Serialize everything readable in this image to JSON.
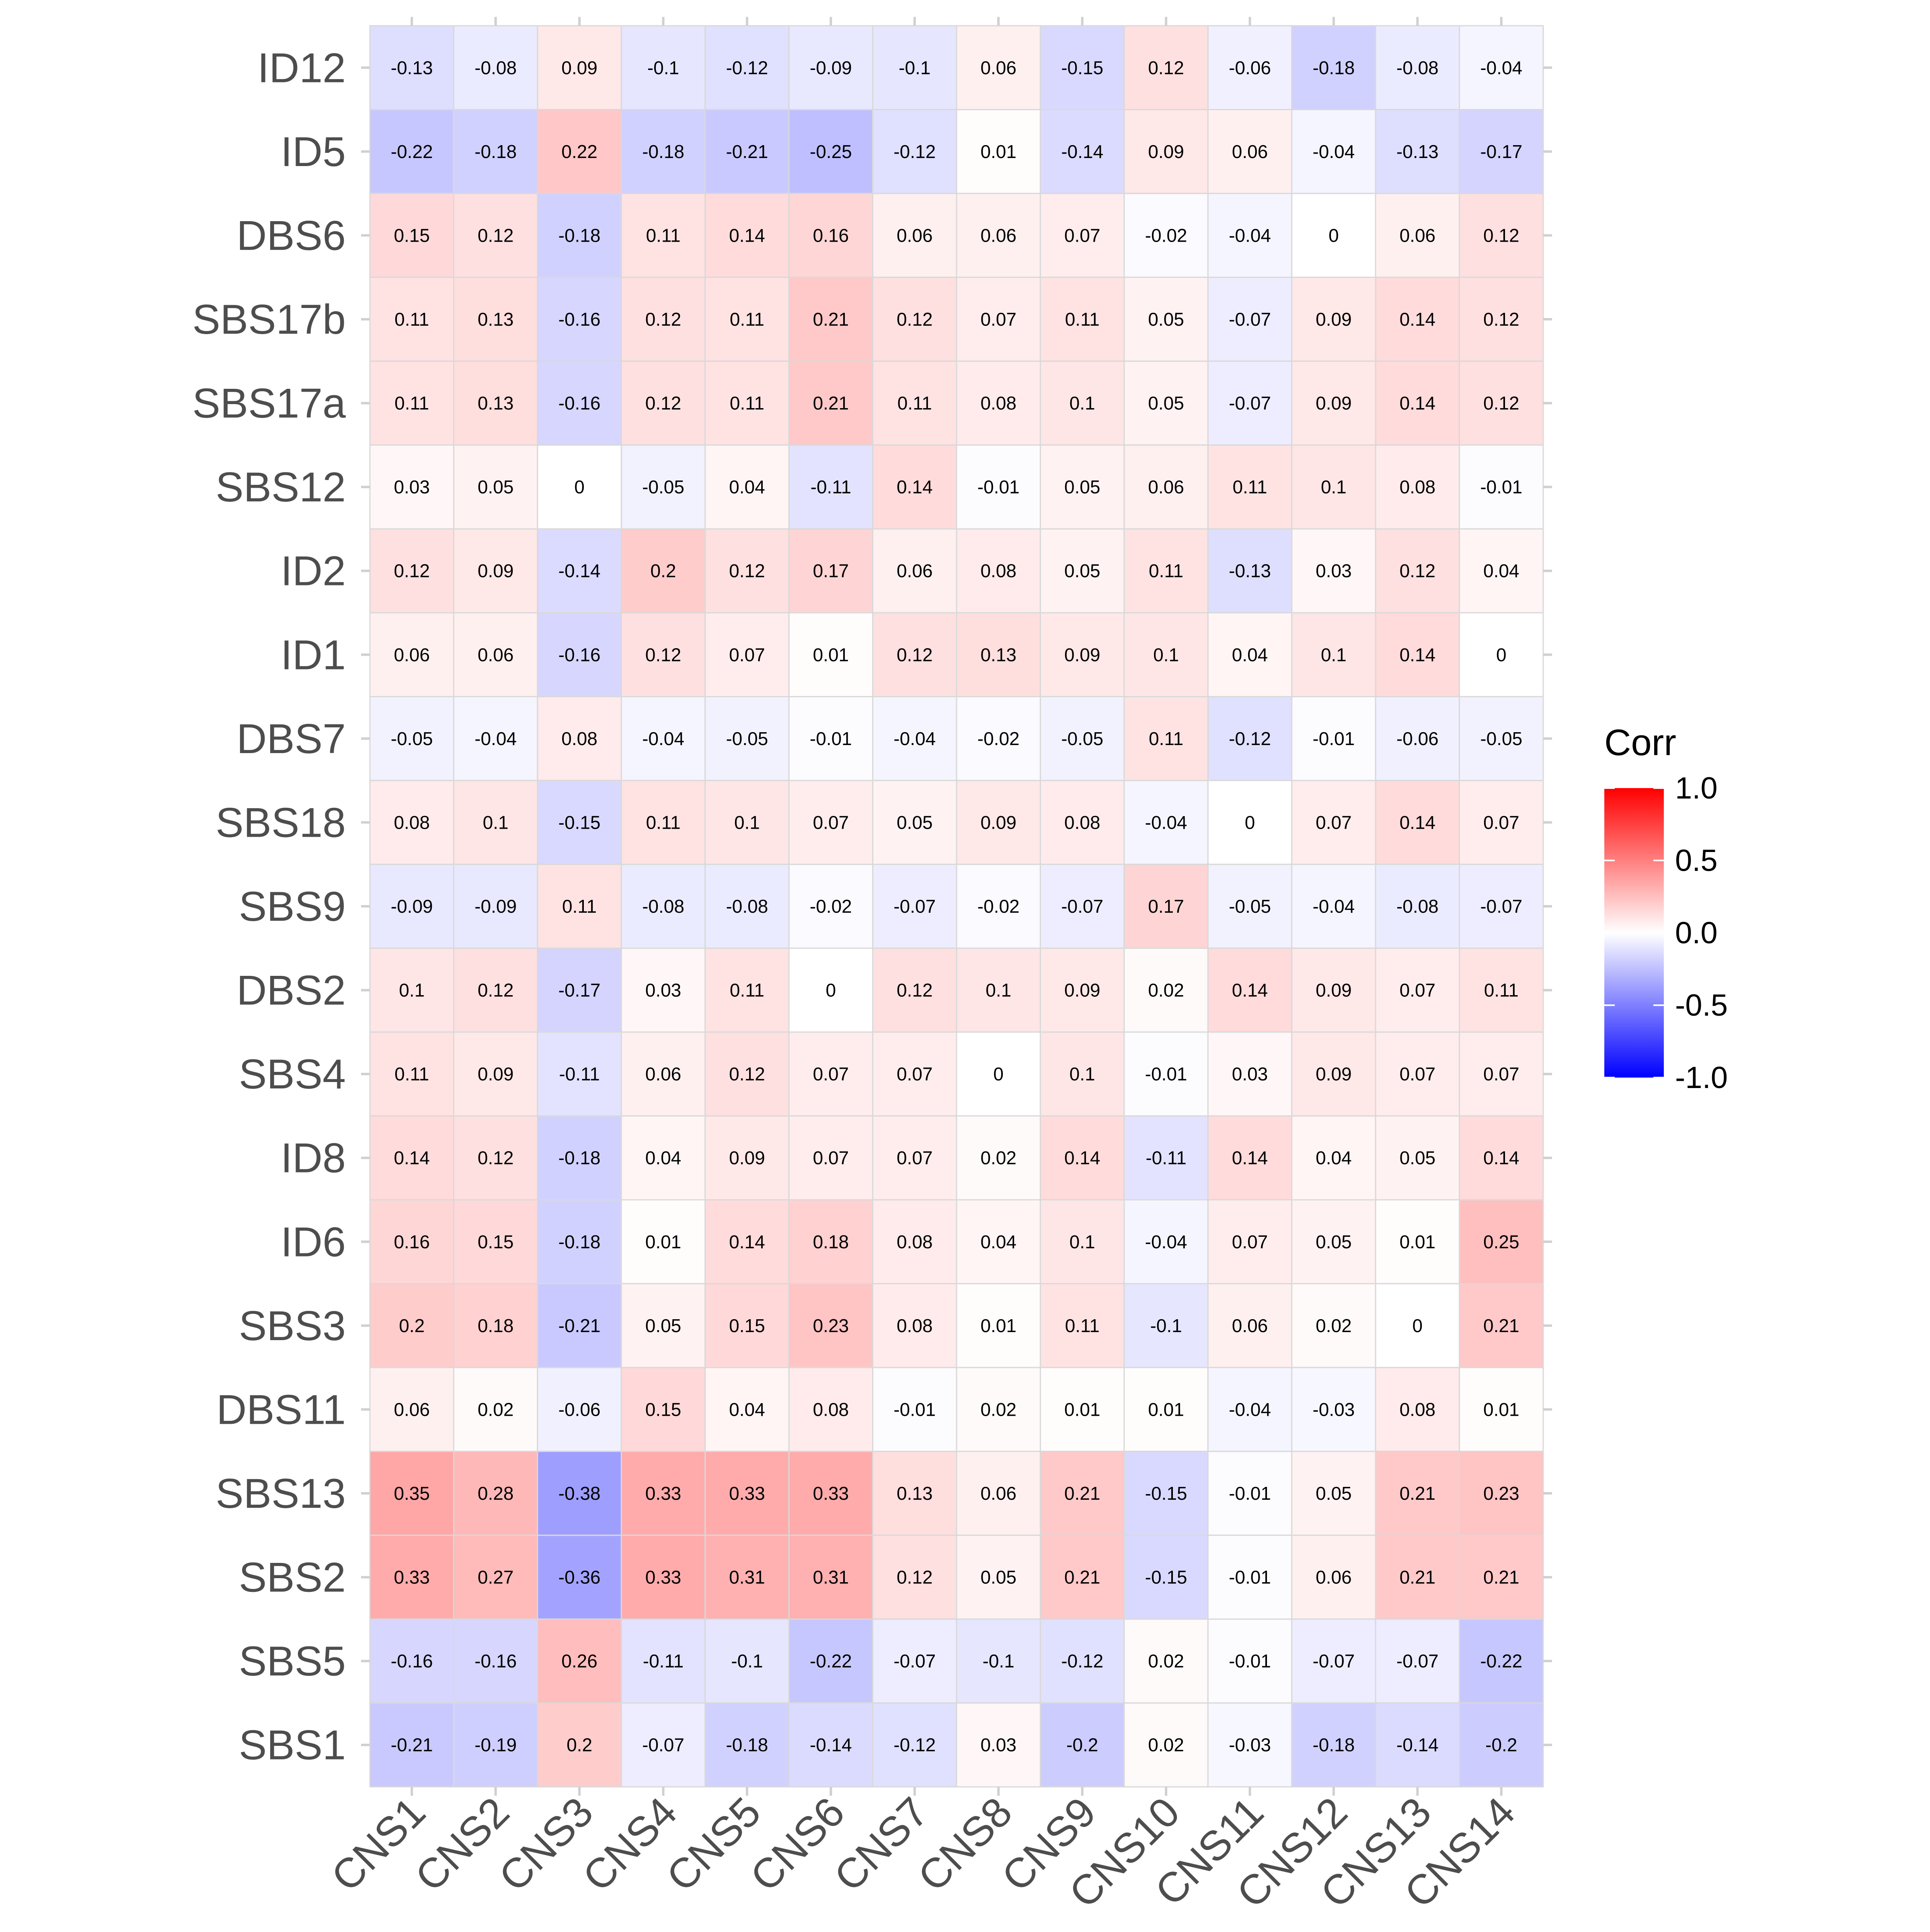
{
  "chart_data": {
    "type": "heatmap",
    "title": "",
    "xlabel": "",
    "ylabel": "",
    "x": [
      "CNS1",
      "CNS2",
      "CNS3",
      "CNS4",
      "CNS5",
      "CNS6",
      "CNS7",
      "CNS8",
      "CNS9",
      "CNS10",
      "CNS11",
      "CNS12",
      "CNS13",
      "CNS14"
    ],
    "y": [
      "ID12",
      "ID5",
      "DBS6",
      "SBS17b",
      "SBS17a",
      "SBS12",
      "ID2",
      "ID1",
      "DBS7",
      "SBS18",
      "SBS9",
      "DBS2",
      "SBS4",
      "ID8",
      "ID6",
      "SBS3",
      "DBS11",
      "SBS13",
      "SBS2",
      "SBS5",
      "SBS1"
    ],
    "values": [
      [
        -0.13,
        -0.08,
        0.09,
        -0.1,
        -0.12,
        -0.09,
        -0.1,
        0.06,
        -0.15,
        0.12,
        -0.06,
        -0.18,
        -0.08,
        -0.04
      ],
      [
        -0.22,
        -0.18,
        0.22,
        -0.18,
        -0.21,
        -0.25,
        -0.12,
        0.01,
        -0.14,
        0.09,
        0.06,
        -0.04,
        -0.13,
        -0.17
      ],
      [
        0.15,
        0.12,
        -0.18,
        0.11,
        0.14,
        0.16,
        0.06,
        0.06,
        0.07,
        -0.02,
        -0.04,
        0,
        0.06,
        0.12
      ],
      [
        0.11,
        0.13,
        -0.16,
        0.12,
        0.11,
        0.21,
        0.12,
        0.07,
        0.11,
        0.05,
        -0.07,
        0.09,
        0.14,
        0.12
      ],
      [
        0.11,
        0.13,
        -0.16,
        0.12,
        0.11,
        0.21,
        0.11,
        0.08,
        0.1,
        0.05,
        -0.07,
        0.09,
        0.14,
        0.12
      ],
      [
        0.03,
        0.05,
        0,
        -0.05,
        0.04,
        -0.11,
        0.14,
        -0.01,
        0.05,
        0.06,
        0.11,
        0.1,
        0.08,
        -0.01
      ],
      [
        0.12,
        0.09,
        -0.14,
        0.2,
        0.12,
        0.17,
        0.06,
        0.08,
        0.05,
        0.11,
        -0.13,
        0.03,
        0.12,
        0.04
      ],
      [
        0.06,
        0.06,
        -0.16,
        0.12,
        0.07,
        0.01,
        0.12,
        0.13,
        0.09,
        0.1,
        0.04,
        0.1,
        0.14,
        0
      ],
      [
        -0.05,
        -0.04,
        0.08,
        -0.04,
        -0.05,
        -0.01,
        -0.04,
        -0.02,
        -0.05,
        0.11,
        -0.12,
        -0.01,
        -0.06,
        -0.05
      ],
      [
        0.08,
        0.1,
        -0.15,
        0.11,
        0.1,
        0.07,
        0.05,
        0.09,
        0.08,
        -0.04,
        0,
        0.07,
        0.14,
        0.07
      ],
      [
        -0.09,
        -0.09,
        0.11,
        -0.08,
        -0.08,
        -0.02,
        -0.07,
        -0.02,
        -0.07,
        0.17,
        -0.05,
        -0.04,
        -0.08,
        -0.07
      ],
      [
        0.1,
        0.12,
        -0.17,
        0.03,
        0.11,
        0,
        0.12,
        0.1,
        0.09,
        0.02,
        0.14,
        0.09,
        0.07,
        0.11
      ],
      [
        0.11,
        0.09,
        -0.11,
        0.06,
        0.12,
        0.07,
        0.07,
        0,
        0.1,
        -0.01,
        0.03,
        0.09,
        0.07,
        0.07
      ],
      [
        0.14,
        0.12,
        -0.18,
        0.04,
        0.09,
        0.07,
        0.07,
        0.02,
        0.14,
        -0.11,
        0.14,
        0.04,
        0.05,
        0.14
      ],
      [
        0.16,
        0.15,
        -0.18,
        0.01,
        0.14,
        0.18,
        0.08,
        0.04,
        0.1,
        -0.04,
        0.07,
        0.05,
        0.01,
        0.25
      ],
      [
        0.2,
        0.18,
        -0.21,
        0.05,
        0.15,
        0.23,
        0.08,
        0.01,
        0.11,
        -0.1,
        0.06,
        0.02,
        0,
        0.21
      ],
      [
        0.06,
        0.02,
        -0.06,
        0.15,
        0.04,
        0.08,
        -0.01,
        0.02,
        0.01,
        0.01,
        -0.04,
        -0.03,
        0.08,
        0.01
      ],
      [
        0.35,
        0.28,
        -0.38,
        0.33,
        0.33,
        0.33,
        0.13,
        0.06,
        0.21,
        -0.15,
        -0.01,
        0.05,
        0.21,
        0.23
      ],
      [
        0.33,
        0.27,
        -0.36,
        0.33,
        0.31,
        0.31,
        0.12,
        0.05,
        0.21,
        -0.15,
        -0.01,
        0.06,
        0.21,
        0.21
      ],
      [
        -0.16,
        -0.16,
        0.26,
        -0.11,
        -0.1,
        -0.22,
        -0.07,
        -0.1,
        -0.12,
        0.02,
        -0.01,
        -0.07,
        -0.07,
        -0.22
      ],
      [
        -0.21,
        -0.19,
        0.2,
        -0.07,
        -0.18,
        -0.14,
        -0.12,
        0.03,
        -0.2,
        0.02,
        -0.03,
        -0.18,
        -0.14,
        -0.2
      ]
    ],
    "legend": {
      "title": "Corr",
      "placement": "right",
      "range": [
        -1,
        1
      ],
      "ticks": [
        "1.0",
        "0.5",
        "0.0",
        "-0.5",
        "-1.0"
      ],
      "tick_values": [
        1,
        0.5,
        0,
        -0.5,
        -1
      ]
    },
    "colors": {
      "low": "#0000ff",
      "mid": "#ffffff",
      "high": "#ff0000",
      "cell_border": "#d9d9d9"
    },
    "grid": false
  }
}
